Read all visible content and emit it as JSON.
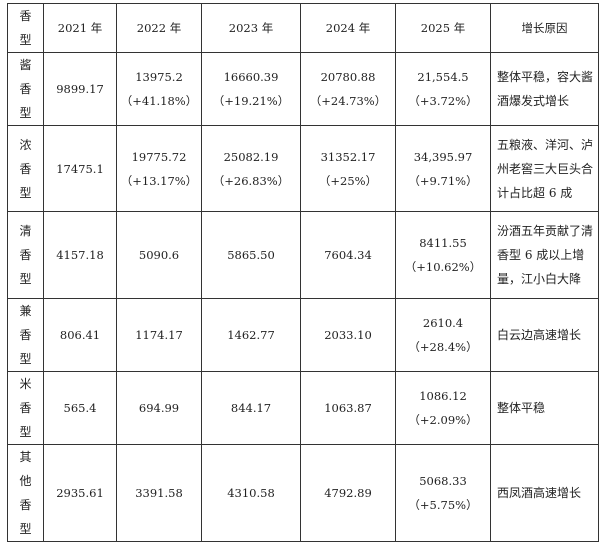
{
  "header": {
    "type_label": [
      "香",
      "型"
    ],
    "years": [
      "2021 年",
      "2022 年",
      "2023 年",
      "2024 年",
      "2025 年"
    ],
    "reason_label": "增长原因"
  },
  "rows": [
    {
      "type": [
        "酱",
        "香",
        "型"
      ],
      "values": [
        {
          "v": "9899.17",
          "p": ""
        },
        {
          "v": "13975.2",
          "p": "（+41.18%）"
        },
        {
          "v": "16660.39",
          "p": "（+19.21%）"
        },
        {
          "v": "20780.88",
          "p": "（+24.73%）"
        },
        {
          "v": "21,554.5",
          "p": "（+3.72%）"
        }
      ],
      "reason": "整体平稳，容大酱酒爆发式增长"
    },
    {
      "type": [
        "浓",
        "香",
        "型"
      ],
      "values": [
        {
          "v": "17475.1",
          "p": ""
        },
        {
          "v": "19775.72",
          "p": "（+13.17%）"
        },
        {
          "v": "25082.19",
          "p": "（+26.83%）"
        },
        {
          "v": "31352.17",
          "p": "（+25%）"
        },
        {
          "v": "34,395.97",
          "p": "（+9.71%）"
        }
      ],
      "reason": "五粮液、洋河、泸州老窖三大巨头合计占比超 6 成"
    },
    {
      "type": [
        "清",
        "香",
        "型"
      ],
      "values": [
        {
          "v": "4157.18",
          "p": ""
        },
        {
          "v": "5090.6",
          "p": ""
        },
        {
          "v": "5865.50",
          "p": ""
        },
        {
          "v": "7604.34",
          "p": ""
        },
        {
          "v": "8411.55",
          "p": "（+10.62%）"
        }
      ],
      "reason": "汾酒五年贡献了清香型 6 成以上增量，江小白大降"
    },
    {
      "type": [
        "兼",
        "香",
        "型"
      ],
      "values": [
        {
          "v": "806.41",
          "p": ""
        },
        {
          "v": "1174.17",
          "p": ""
        },
        {
          "v": "1462.77",
          "p": ""
        },
        {
          "v": "2033.10",
          "p": ""
        },
        {
          "v": "2610.4",
          "p": "（+28.4%）"
        }
      ],
      "reason": "白云边高速增长"
    },
    {
      "type": [
        "米",
        "香",
        "型"
      ],
      "values": [
        {
          "v": "565.4",
          "p": ""
        },
        {
          "v": "694.99",
          "p": ""
        },
        {
          "v": "844.17",
          "p": ""
        },
        {
          "v": "1063.87",
          "p": ""
        },
        {
          "v": "1086.12",
          "p": "（+2.09%）"
        }
      ],
      "reason": "整体平稳"
    },
    {
      "type": [
        "其",
        "他",
        "香",
        "型"
      ],
      "values": [
        {
          "v": "2935.61",
          "p": ""
        },
        {
          "v": "3391.58",
          "p": ""
        },
        {
          "v": "4310.58",
          "p": ""
        },
        {
          "v": "4792.89",
          "p": ""
        },
        {
          "v": "5068.33",
          "p": "（+5.75%）"
        }
      ],
      "reason": "西凤酒高速增长"
    }
  ]
}
